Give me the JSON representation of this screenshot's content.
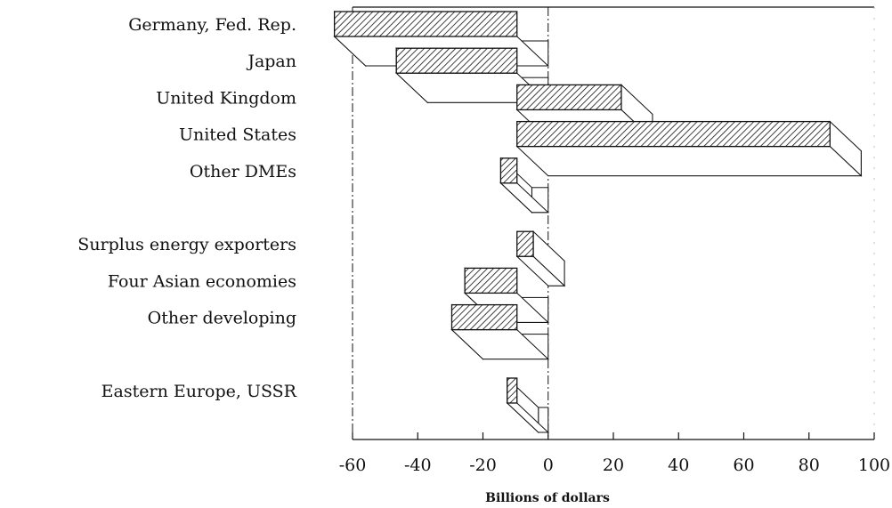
{
  "chart_data": {
    "type": "bar3d",
    "orientation": "horizontal",
    "x_label": "Billions of dollars",
    "categories": [
      "Germany, Fed. Rep.",
      "Japan",
      "United Kingdom",
      "United States",
      "Other DMEs",
      null,
      "Surplus energy exporters",
      "Four Asian economies",
      "Other developing",
      null,
      "Eastern Europe, USSR"
    ],
    "values": [
      -56,
      -37,
      32,
      96,
      -5,
      null,
      5,
      -16,
      -20,
      null,
      -3
    ],
    "color": "#111",
    "xlim": [
      -60,
      100
    ],
    "xticks": [
      -60,
      -40,
      -20,
      0,
      20,
      40,
      60,
      80,
      100
    ]
  }
}
